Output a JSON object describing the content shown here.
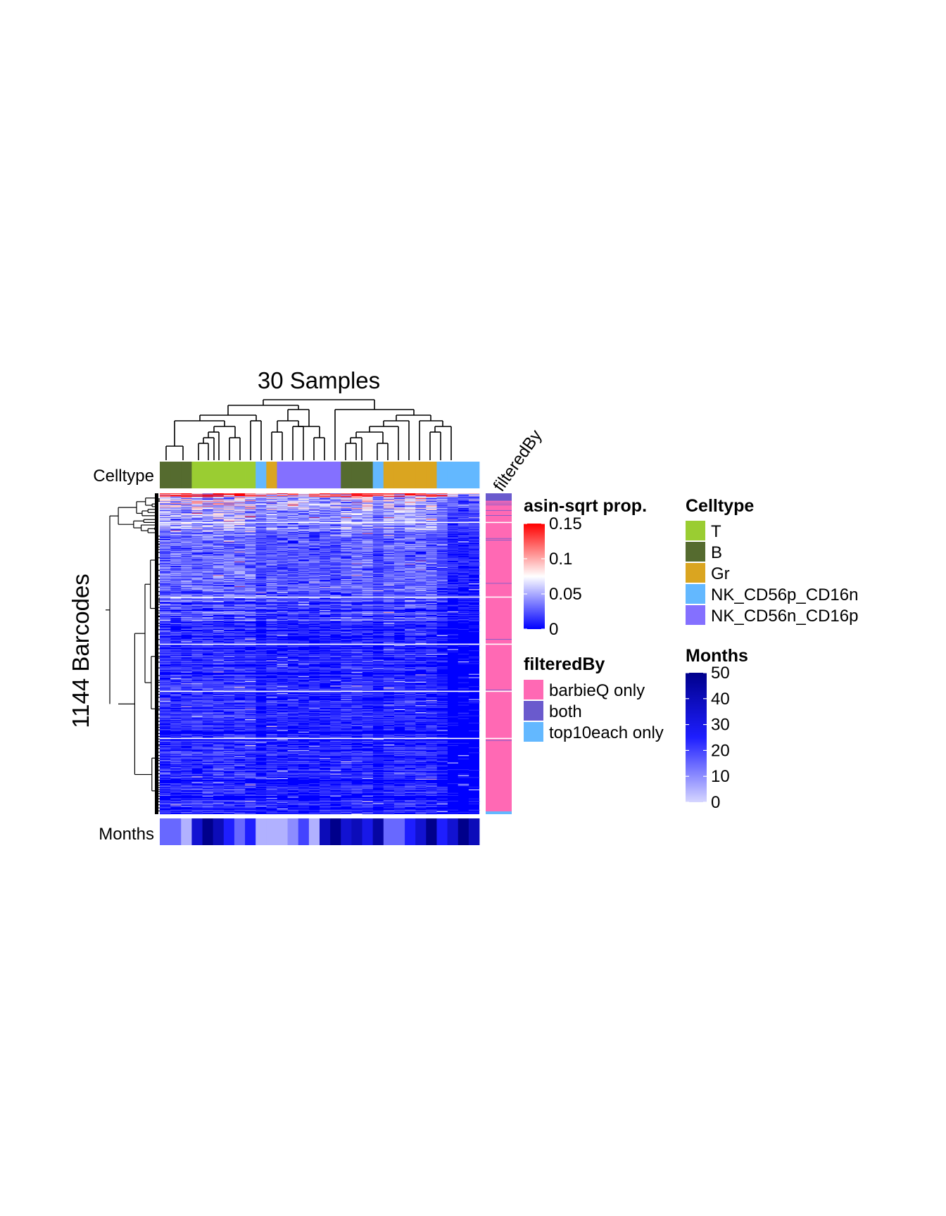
{
  "chart_data": {
    "type": "heatmap",
    "title": "30 Samples",
    "row_title": "1144 Barcodes",
    "n_samples": 30,
    "n_barcodes": 1144,
    "row_slices": [
      {
        "rows": 104,
        "label": ""
      },
      {
        "rows": 266,
        "label": ""
      },
      {
        "rows": 168,
        "label": ""
      },
      {
        "rows": 168,
        "label": ""
      },
      {
        "rows": 168,
        "label": ""
      },
      {
        "rows": 270,
        "label": ""
      }
    ],
    "column_annotation": {
      "name": "Celltype",
      "values": [
        "B",
        "B",
        "B",
        "T",
        "T",
        "T",
        "T",
        "T",
        "T",
        "NK_CD56p_CD16n",
        "Gr",
        "NK_CD56n_CD16p",
        "NK_CD56n_CD16p",
        "NK_CD56n_CD16p",
        "NK_CD56n_CD16p",
        "NK_CD56n_CD16p",
        "NK_CD56n_CD16p",
        "B",
        "B",
        "B",
        "NK_CD56p_CD16n",
        "Gr",
        "Gr",
        "Gr",
        "Gr",
        "Gr",
        "NK_CD56p_CD16n",
        "NK_CD56p_CD16n",
        "NK_CD56p_CD16n",
        "NK_CD56p_CD16n"
      ]
    },
    "months_annotation": {
      "name": "Months",
      "values": [
        15,
        15,
        5,
        35,
        50,
        40,
        25,
        15,
        25,
        5,
        5,
        5,
        10,
        20,
        5,
        40,
        50,
        35,
        40,
        30,
        45,
        15,
        15,
        25,
        35,
        50,
        25,
        35,
        50,
        40
      ]
    },
    "row_annotation": {
      "name": "filteredBy",
      "summary": [
        {
          "rows": 20,
          "category": "both"
        },
        {
          "rows": 1110,
          "category": "barbieQ only"
        },
        {
          "rows": 14,
          "category": "top10each only"
        }
      ]
    },
    "legends": [
      {
        "title": "asin-sqrt prop.",
        "type": "continuous",
        "breaks": [
          "0.15",
          "0.1",
          "0.05",
          "0"
        ],
        "colors": [
          "#0000FF",
          "#FFFFFF",
          "#FF0000"
        ],
        "range": [
          0,
          0.15
        ]
      },
      {
        "title": "filteredBy",
        "type": "discrete",
        "levels": [
          {
            "label": "barbieQ only",
            "color": "#FF69B4"
          },
          {
            "label": "both",
            "color": "#6A5ACD"
          },
          {
            "label": "top10each only",
            "color": "#63B8FF"
          }
        ]
      },
      {
        "title": "Celltype",
        "type": "discrete",
        "levels": [
          {
            "label": "T",
            "color": "#9ACD32"
          },
          {
            "label": "B",
            "color": "#556B2F"
          },
          {
            "label": "Gr",
            "color": "#DAA520"
          },
          {
            "label": "NK_CD56p_CD16n",
            "color": "#63B8FF"
          },
          {
            "label": "NK_CD56n_CD16p",
            "color": "#8470FF"
          }
        ]
      },
      {
        "title": "Months",
        "type": "continuous",
        "breaks": [
          "50",
          "40",
          "30",
          "20",
          "10",
          "0"
        ],
        "colors": [
          "#D6D6FF",
          "#1E1EFF",
          "#00008B"
        ],
        "range": [
          0,
          50
        ]
      }
    ]
  }
}
